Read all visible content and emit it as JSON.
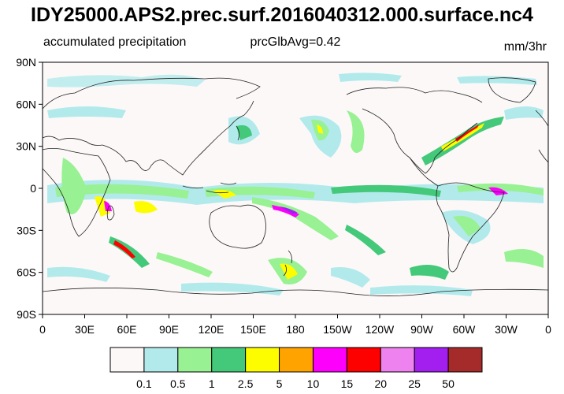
{
  "title": "IDY25000.APS2.prec.surf.2016040312.000.surface.nc4",
  "left_string": "accumulated precipitation",
  "center_string": "prcGlbAvg=0.42",
  "right_string": "mm/3hr",
  "lat_ticks": [
    "90N",
    "60N",
    "30N",
    "0",
    "30S",
    "60S",
    "90S"
  ],
  "lon_ticks": [
    "0",
    "30E",
    "60E",
    "90E",
    "120E",
    "150E",
    "180",
    "150W",
    "120W",
    "90W",
    "60W",
    "30W",
    "0"
  ],
  "colorbar": {
    "labels": [
      "0.1",
      "0.5",
      "1",
      "2.5",
      "5",
      "10",
      "15",
      "20",
      "25",
      "50"
    ],
    "colors": [
      "#fcf8f8",
      "#b2eaec",
      "#98f192",
      "#44c97a",
      "#fdfd00",
      "#fea300",
      "#fc00fc",
      "#fd0000",
      "#ee82ee",
      "#a21ff0",
      "#a52a2a"
    ]
  }
}
